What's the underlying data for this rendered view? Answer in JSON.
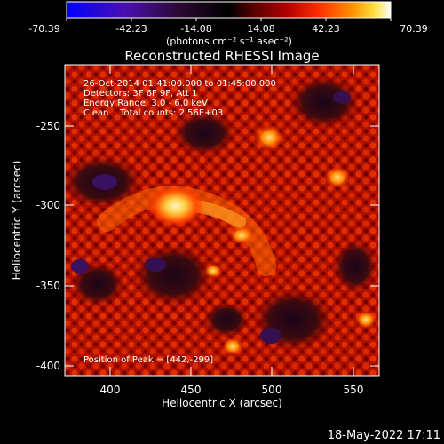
{
  "colorbar": {
    "ticks": [
      "-70.39",
      "-42.23",
      "-14.08",
      "14.08",
      "42.23",
      "70.39"
    ],
    "unit_label": "(photons cm⁻² s⁻¹ asec⁻²)",
    "colors": [
      "#0000ff",
      "#4a0fb0",
      "#2a0830",
      "#000000",
      "#5a0000",
      "#b00000",
      "#ff3000",
      "#ff9000",
      "#ffe040",
      "#ffffff"
    ]
  },
  "chart_data": {
    "type": "heatmap",
    "title": "Reconstructed RHESSI Image",
    "xlabel": "Heliocentric X (arcsec)",
    "ylabel": "Heliocentric Y (arcsec)",
    "x_ticks": [
      400,
      450,
      500,
      550
    ],
    "y_ticks": [
      -250,
      -300,
      -350,
      -400
    ],
    "xlim": [
      372,
      566
    ],
    "ylim": [
      -407,
      -211
    ],
    "peak": {
      "x": 442,
      "y": -299
    },
    "annotations": [
      "26-Oct-2014 01:41:00.000 to 01:45:00.000",
      "Detectors: 3F 6F 9F, Att 1",
      "Energy Range: 3.0 - 6.0 keV",
      "Clean    Total counts: 2.56E+03",
      "Position of Peak = [442,-299]"
    ]
  },
  "footer": {
    "timestamp": "18-May-2022 17:11"
  }
}
